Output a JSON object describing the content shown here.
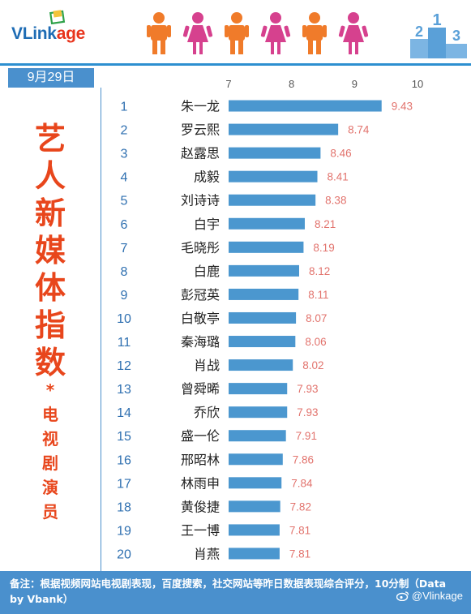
{
  "header": {
    "logo_part1": "VLink",
    "logo_part2": "age",
    "people_colors": [
      "#f07b2a",
      "#d6418e",
      "#f07b2a",
      "#d6418e",
      "#f07b2a",
      "#d6418e"
    ],
    "podium_numbers": [
      "2",
      "1",
      "3"
    ]
  },
  "date": "9月29日",
  "side_title": {
    "main_chars": [
      "艺",
      "人",
      "新",
      "媒",
      "体",
      "指",
      "数"
    ],
    "star": "*",
    "sub_chars": [
      "电",
      "视",
      "剧",
      "演",
      "员"
    ]
  },
  "chart_data": {
    "type": "bar",
    "orientation": "horizontal",
    "xlim": [
      7,
      10
    ],
    "x_ticks": [
      "7",
      "8",
      "9",
      "10"
    ],
    "ranks": [
      "1",
      "2",
      "3",
      "4",
      "5",
      "6",
      "7",
      "8",
      "9",
      "10",
      "11",
      "12",
      "13",
      "14",
      "15",
      "16",
      "17",
      "18",
      "19",
      "20"
    ],
    "categories": [
      "朱一龙",
      "罗云熙",
      "赵露思",
      "成毅",
      "刘诗诗",
      "白宇",
      "毛晓彤",
      "白鹿",
      "彭冠英",
      "白敬亭",
      "秦海璐",
      "肖战",
      "曾舜晞",
      "乔欣",
      "盛一伦",
      "邢昭林",
      "林雨申",
      "黄俊捷",
      "王一博",
      "肖燕"
    ],
    "values": [
      9.43,
      8.74,
      8.46,
      8.41,
      8.38,
      8.21,
      8.19,
      8.12,
      8.11,
      8.07,
      8.06,
      8.02,
      7.93,
      7.93,
      7.91,
      7.86,
      7.84,
      7.82,
      7.81,
      7.81
    ],
    "value_labels": [
      "9.43",
      "8.74",
      "8.46",
      "8.41",
      "8.38",
      "8.21",
      "8.19",
      "8.12",
      "8.11",
      "8.07",
      "8.06",
      "8.02",
      "7.93",
      "7.93",
      "7.91",
      "7.86",
      "7.84",
      "7.82",
      "7.81",
      "7.81"
    ],
    "bar_color": "#4b97cf",
    "rank_color": "#2e6fb0",
    "value_label_color": "#e2736d"
  },
  "footer": {
    "note": "备注：根据视频网站电视剧表现，百度搜索，社交网站等昨日数据表现综合评分，10分制（Data by Vbank）",
    "weibo": "@Vlinkage"
  }
}
